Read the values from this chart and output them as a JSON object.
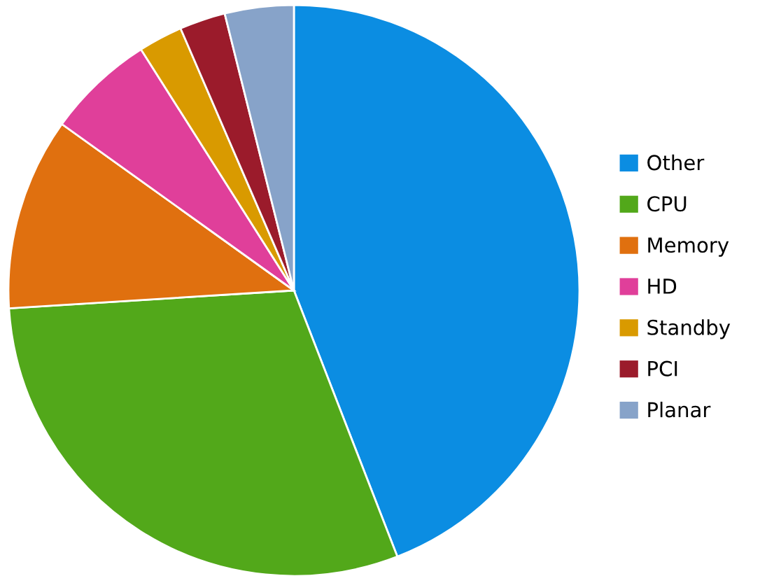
{
  "chart_data": {
    "type": "pie",
    "categories": [
      "Other",
      "CPU",
      "Memory",
      "HD",
      "Standby",
      "PCI",
      "Planar"
    ],
    "values": [
      44.1,
      29.9,
      10.9,
      6.1,
      2.5,
      2.6,
      3.9
    ],
    "colors": [
      "#0b8de2",
      "#52a81a",
      "#e0700f",
      "#e03f9a",
      "#d99a00",
      "#9b1b2b",
      "#87a3c9"
    ],
    "legend": "right"
  }
}
